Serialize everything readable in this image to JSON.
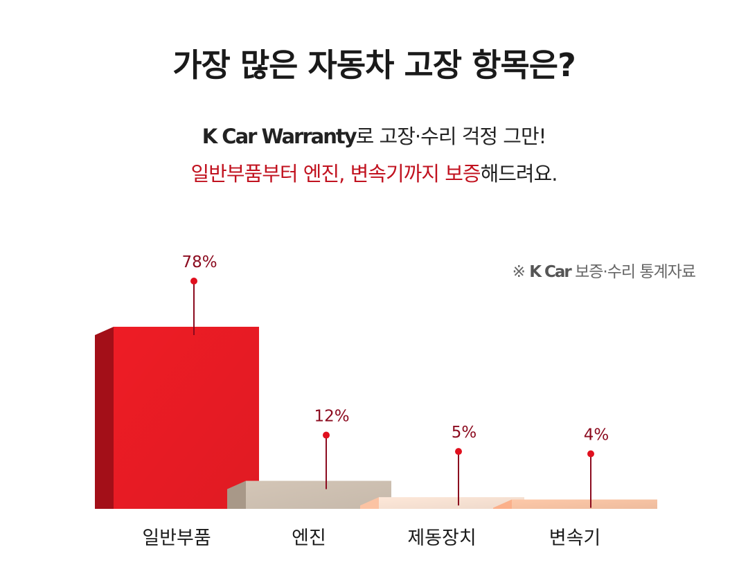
{
  "header": {
    "title": "가장 많은 자동차 고장 항목은?",
    "subtitle_brand": "K Car Warranty",
    "subtitle_rest": "로 고장·수리 걱정 그만!",
    "line2_accent": "일반부품부터 엔진, 변속기까지 보증",
    "line2_rest": "해드려요."
  },
  "source": {
    "prefix": "※ ",
    "brand": "K Car",
    "rest": " 보증·수리 통계자료"
  },
  "chart_data": {
    "type": "bar",
    "categories": [
      "일반부품",
      "엔진",
      "제동장치",
      "변속기"
    ],
    "values": [
      78,
      12,
      5,
      4
    ],
    "value_labels": [
      "78%",
      "12%",
      "5%",
      "4%"
    ],
    "ylim": [
      0,
      100
    ],
    "grid": false,
    "colors": {
      "bars": [
        "#ee1c25",
        "#d3c5b6",
        "#fde7d8",
        "#fdc8a8"
      ],
      "bar_sides": [
        "#a30f18",
        "#a89888",
        "#fbc3a3",
        "#fbb08a"
      ],
      "label": "#8b0a1e",
      "pin": "#e0101e"
    }
  }
}
